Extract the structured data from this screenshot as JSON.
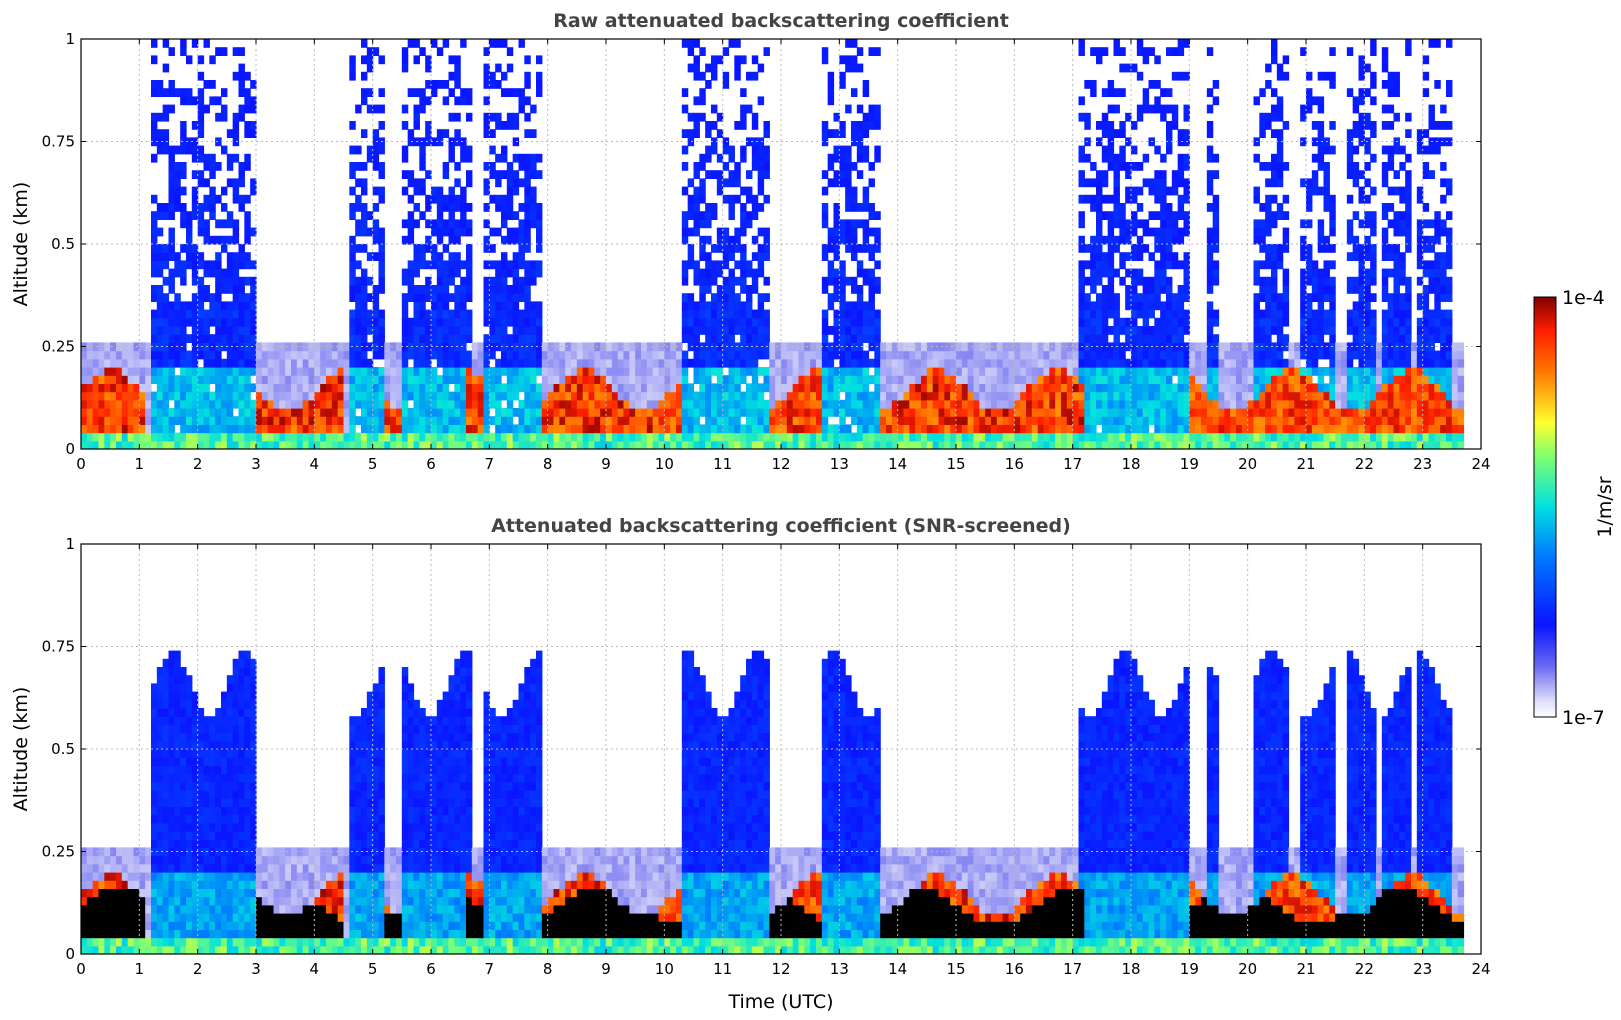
{
  "chart_data": [
    {
      "type": "heatmap",
      "title": "Raw attenuated backscattering coefficient",
      "xlabel": "",
      "ylabel": "Altitude (km)",
      "xlim": [
        0,
        24
      ],
      "ylim": [
        0,
        1
      ],
      "xticks": [
        "0",
        "1",
        "2",
        "3",
        "4",
        "5",
        "6",
        "7",
        "8",
        "9",
        "10",
        "11",
        "12",
        "13",
        "14",
        "15",
        "16",
        "17",
        "18",
        "19",
        "20",
        "21",
        "22",
        "23",
        "24"
      ],
      "yticks": [
        "0",
        "0.25",
        "0.5",
        "0.75",
        "1"
      ],
      "grid": true,
      "cloud_periods_utc": [
        [
          1.2,
          3.0
        ],
        [
          4.6,
          5.2
        ],
        [
          5.5,
          6.7
        ],
        [
          6.9,
          7.9
        ],
        [
          10.3,
          11.8
        ],
        [
          12.7,
          13.7
        ],
        [
          17.1,
          19.0
        ],
        [
          19.3,
          19.5
        ],
        [
          20.1,
          20.7
        ],
        [
          20.9,
          21.5
        ],
        [
          21.7,
          22.2
        ],
        [
          22.3,
          22.8
        ],
        [
          22.9,
          23.5
        ]
      ],
      "dense_layer_top_km": 0.17,
      "colorbar": {
        "min_label": "1e-7",
        "max_label": "1e-4",
        "label": "1/m/sr",
        "scale": "log"
      }
    },
    {
      "type": "heatmap",
      "title": "Attenuated backscattering coefficient (SNR-screened)",
      "xlabel": "Time (UTC)",
      "ylabel": "Altitude (km)",
      "xlim": [
        0,
        24
      ],
      "ylim": [
        0,
        1
      ],
      "xticks": [
        "0",
        "1",
        "2",
        "3",
        "4",
        "5",
        "6",
        "7",
        "8",
        "9",
        "10",
        "11",
        "12",
        "13",
        "14",
        "15",
        "16",
        "17",
        "18",
        "19",
        "20",
        "21",
        "22",
        "23",
        "24"
      ],
      "yticks": [
        "0",
        "0.25",
        "0.5",
        "0.75",
        "1"
      ],
      "grid": true,
      "screened_cloud_top_km": 0.66,
      "masked_layer_top_km": 0.15
    }
  ],
  "colorbar": {
    "max_label": "1e-4",
    "min_label": "1e-7",
    "unit_label": "1/m/sr"
  },
  "colors": {
    "low": "#e6e6fa",
    "blue": "#0a14ff",
    "cyan": "#00e0e0",
    "yellow": "#ffff30",
    "red": "#ff2000",
    "darkred": "#7f0000",
    "mask": "#000000"
  }
}
